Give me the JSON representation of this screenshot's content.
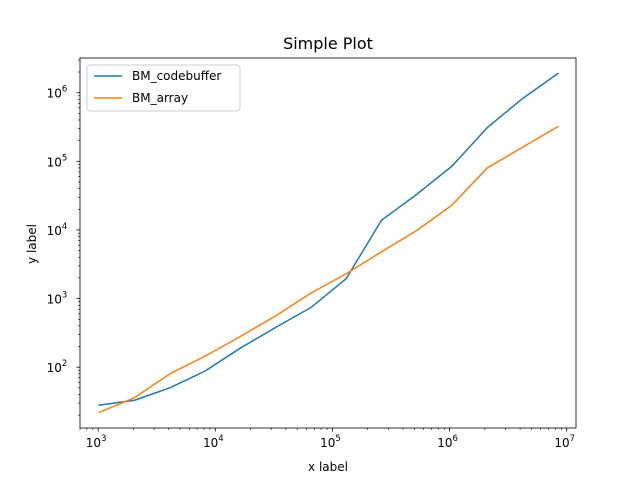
{
  "chart_data": {
    "type": "line",
    "title": "Simple Plot",
    "xlabel": "x label",
    "ylabel": "y label",
    "xscale": "log",
    "yscale": "log",
    "xlim": [
      700,
      12000000
    ],
    "ylim": [
      13,
      3200000
    ],
    "x_ticks": [
      {
        "value": 1000,
        "base": "10",
        "exp": "3"
      },
      {
        "value": 10000,
        "base": "10",
        "exp": "4"
      },
      {
        "value": 100000,
        "base": "10",
        "exp": "5"
      },
      {
        "value": 1000000,
        "base": "10",
        "exp": "6"
      },
      {
        "value": 10000000,
        "base": "10",
        "exp": "7"
      }
    ],
    "y_ticks": [
      {
        "value": 100,
        "base": "10",
        "exp": "2"
      },
      {
        "value": 1000,
        "base": "10",
        "exp": "3"
      },
      {
        "value": 10000,
        "base": "10",
        "exp": "4"
      },
      {
        "value": 100000,
        "base": "10",
        "exp": "5"
      },
      {
        "value": 1000000,
        "base": "10",
        "exp": "6"
      }
    ],
    "x": [
      1024,
      2048,
      4096,
      8192,
      16384,
      32768,
      65536,
      131072,
      262144,
      524288,
      1048576,
      2097152,
      4194304,
      8388608
    ],
    "series": [
      {
        "name": "BM_codebuffer",
        "color": "#1f77b4",
        "values": [
          28,
          33,
          50,
          88,
          190,
          380,
          740,
          1950,
          13800,
          33000,
          85000,
          310000,
          820000,
          1900000
        ]
      },
      {
        "name": "BM_array",
        "color": "#ff7f0e",
        "values": [
          22,
          36,
          80,
          145,
          280,
          560,
          1200,
          2300,
          4800,
          9800,
          23000,
          80000,
          160000,
          320000
        ]
      }
    ],
    "grid": false,
    "legend_position": "upper-left"
  }
}
